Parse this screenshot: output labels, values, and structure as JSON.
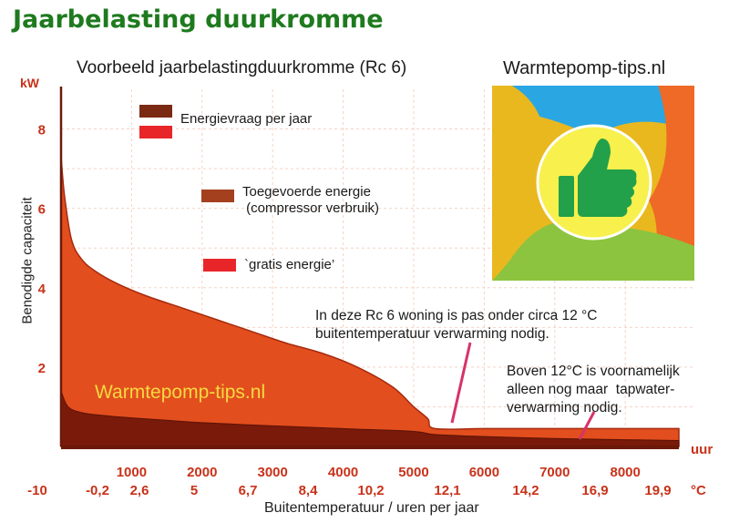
{
  "page": {
    "title": "Jaarbelasting duurkromme",
    "brand": "Warmtepomp-tips.nl"
  },
  "chart_data": {
    "type": "area",
    "title": "Voorbeeld jaarbelastingduurkromme (Rc 6)",
    "ylabel": "Benodigde capaciteit",
    "xlabel": "Buitentemperatuur / uren per jaar",
    "y_unit": "kW",
    "x_unit": "uur",
    "temp_unit": "°C",
    "xlim": [
      0,
      8760
    ],
    "ylim": [
      0,
      9
    ],
    "grid": true,
    "y_ticks": [
      "2",
      "4",
      "6",
      "8"
    ],
    "x_hour_ticks": [
      "1000",
      "2000",
      "3000",
      "4000",
      "5000",
      "6000",
      "7000",
      "8000"
    ],
    "x_temp_ticks": [
      "-10",
      "-0,2",
      "2,6",
      "5",
      "6,7",
      "8,4",
      "10,2",
      "12,1",
      "14,2",
      "16,9",
      "19,9"
    ],
    "series": [
      {
        "name": "Energievraag per jaar",
        "color": "#e24e1e",
        "x": [
          0,
          50,
          150,
          300,
          500,
          800,
          1200,
          1700,
          2200,
          2700,
          3200,
          3700,
          4200,
          4700,
          5000,
          5200,
          5300,
          6000,
          7000,
          8000,
          8760
        ],
        "y": [
          7.3,
          6.3,
          5.2,
          4.7,
          4.4,
          4.1,
          3.8,
          3.5,
          3.2,
          2.9,
          2.6,
          2.35,
          2.0,
          1.5,
          1.0,
          0.7,
          0.45,
          0.45,
          0.45,
          0.45,
          0.45
        ]
      },
      {
        "name": "Toegevoerde energie (compressor verbruik)",
        "color": "#7a1a0a",
        "x": [
          0,
          100,
          300,
          600,
          1000,
          1500,
          2000,
          3000,
          4000,
          5000,
          5300,
          6000,
          7000,
          8000,
          8760
        ],
        "y": [
          1.4,
          1.0,
          0.85,
          0.78,
          0.72,
          0.66,
          0.6,
          0.52,
          0.45,
          0.38,
          0.3,
          0.25,
          0.2,
          0.17,
          0.15
        ]
      }
    ],
    "legend": [
      {
        "swatches": [
          "#7a2a12",
          "#e8262a"
        ],
        "label": "Energievraag per jaar"
      },
      {
        "swatches": [
          "#a4401e"
        ],
        "label_lines": [
          "Toegevoerde energie",
          " (compressor verbruik)"
        ]
      },
      {
        "swatches": [
          "#e8262a"
        ],
        "label": "`gratis energie’"
      }
    ],
    "annotations": [
      {
        "lines": [
          "In deze Rc 6 woning is pas onder circa 12 °C",
          "buitentemperatuur verwarming nodig."
        ]
      },
      {
        "lines": [
          "Boven 12°C is voornamelijk",
          "alleen nog maar  tapwater-",
          "verwarming nodig."
        ]
      }
    ],
    "watermark": "Warmtepomp-tips.nl"
  },
  "logo": {
    "colors": [
      "#e9b81f",
      "#2aa6e3",
      "#ee6a26",
      "#8cc43f",
      "#f7f04d",
      "#23a04a"
    ],
    "icon": "thumbs-up-icon"
  }
}
